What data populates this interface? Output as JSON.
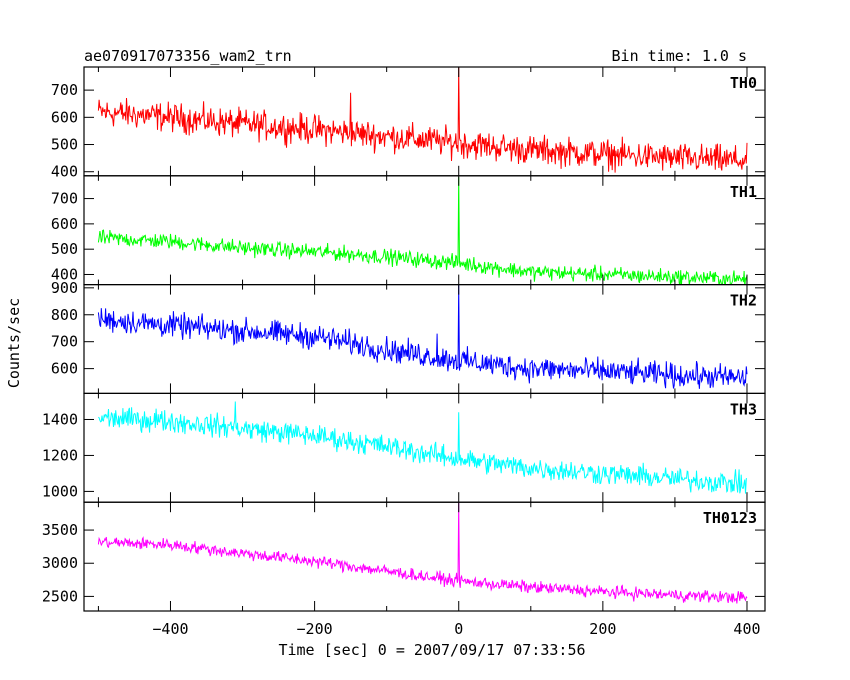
{
  "header": {
    "title": "ae070917073356_wam2_trn",
    "bin_time": "Bin time: 1.0 s"
  },
  "axes": {
    "xlabel": "Time [sec] 0 = 2007/09/17 07:33:56",
    "ylabel": "Counts/sec"
  },
  "chart_data": {
    "type": "line",
    "xlim": [
      -520,
      425
    ],
    "x_ticks": [
      -400,
      -200,
      0,
      200,
      400
    ],
    "x_tick_labels": [
      "−400",
      "−200",
      "0",
      "200",
      "400"
    ],
    "grid": false,
    "panels": [
      {
        "name": "TH0",
        "color": "#ff0000",
        "ylim": [
          385,
          785
        ],
        "y_ticks": [
          400,
          500,
          600,
          700
        ],
        "y_tick_labels": [
          "400",
          "500",
          "600",
          "700"
        ],
        "trend": [
          [
            -500,
            620
          ],
          [
            -400,
            600
          ],
          [
            -300,
            575
          ],
          [
            -200,
            555
          ],
          [
            -100,
            530
          ],
          [
            0,
            505
          ],
          [
            100,
            480
          ],
          [
            200,
            465
          ],
          [
            300,
            450
          ],
          [
            400,
            440
          ]
        ],
        "noise": 70,
        "spikes": [
          [
            0,
            785
          ],
          [
            -150,
            690
          ]
        ]
      },
      {
        "name": "TH1",
        "color": "#00ff00",
        "ylim": [
          360,
          790
        ],
        "y_ticks": [
          400,
          500,
          600,
          700
        ],
        "y_tick_labels": [
          "400",
          "500",
          "600",
          "700"
        ],
        "trend": [
          [
            -500,
            545
          ],
          [
            -400,
            530
          ],
          [
            -300,
            505
          ],
          [
            -200,
            490
          ],
          [
            -100,
            470
          ],
          [
            0,
            445
          ],
          [
            100,
            410
          ],
          [
            200,
            400
          ],
          [
            300,
            390
          ],
          [
            400,
            380
          ]
        ],
        "noise": 40,
        "spikes": [
          [
            0,
            785
          ]
        ]
      },
      {
        "name": "TH2",
        "color": "#0000ff",
        "ylim": [
          508,
          912
        ],
        "y_ticks": [
          600,
          700,
          800,
          900
        ],
        "y_tick_labels": [
          "600",
          "700",
          "800",
          "900"
        ],
        "trend": [
          [
            -500,
            785
          ],
          [
            -400,
            760
          ],
          [
            -300,
            740
          ],
          [
            -200,
            720
          ],
          [
            -100,
            670
          ],
          [
            0,
            630
          ],
          [
            100,
            600
          ],
          [
            200,
            590
          ],
          [
            300,
            575
          ],
          [
            400,
            565
          ]
        ],
        "noise": 60,
        "spikes": [
          [
            0,
            910
          ],
          [
            -30,
            730
          ]
        ]
      },
      {
        "name": "TH3",
        "color": "#00ffff",
        "ylim": [
          940,
          1545
        ],
        "y_ticks": [
          1000,
          1200,
          1400
        ],
        "y_tick_labels": [
          "1000",
          "1200",
          "1400"
        ],
        "trend": [
          [
            -500,
            1410
          ],
          [
            -400,
            1390
          ],
          [
            -300,
            1350
          ],
          [
            -200,
            1310
          ],
          [
            -100,
            1250
          ],
          [
            0,
            1180
          ],
          [
            100,
            1130
          ],
          [
            200,
            1100
          ],
          [
            300,
            1070
          ],
          [
            400,
            1040
          ]
        ],
        "noise": 80,
        "spikes": [
          [
            0,
            1440
          ],
          [
            -310,
            1500
          ],
          [
            -420,
            1460
          ]
        ]
      },
      {
        "name": "TH0123",
        "color": "#ff00ff",
        "ylim": [
          2280,
          3920
        ],
        "y_ticks": [
          2500,
          3000,
          3500
        ],
        "y_tick_labels": [
          "2500",
          "3000",
          "3500"
        ],
        "trend": [
          [
            -500,
            3320
          ],
          [
            -400,
            3280
          ],
          [
            -300,
            3150
          ],
          [
            -200,
            3030
          ],
          [
            -100,
            2880
          ],
          [
            0,
            2730
          ],
          [
            100,
            2640
          ],
          [
            200,
            2570
          ],
          [
            300,
            2520
          ],
          [
            400,
            2480
          ]
        ],
        "noise": 120,
        "spikes": [
          [
            0,
            3920
          ]
        ]
      }
    ]
  }
}
